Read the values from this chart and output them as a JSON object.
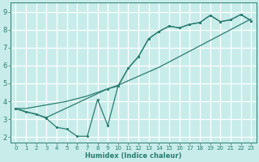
{
  "xlabel": "Humidex (Indice chaleur)",
  "bg_color": "#c8ecea",
  "grid_color": "#e8f8f8",
  "line_color": "#2a7d70",
  "xlim": [
    -0.5,
    23.5
  ],
  "ylim": [
    1.7,
    9.5
  ],
  "xticks": [
    0,
    1,
    2,
    3,
    4,
    5,
    6,
    7,
    8,
    9,
    10,
    11,
    12,
    13,
    14,
    15,
    16,
    17,
    18,
    19,
    20,
    21,
    22,
    23
  ],
  "yticks": [
    2,
    3,
    4,
    5,
    6,
    7,
    8,
    9
  ],
  "line1_x": [
    0,
    1,
    2,
    3,
    4,
    5,
    6,
    7,
    8,
    9,
    10,
    11,
    12,
    13,
    14,
    15,
    16,
    17,
    18,
    19,
    20,
    21,
    22,
    23
  ],
  "line1_y": [
    3.6,
    3.4,
    3.3,
    3.05,
    2.55,
    2.45,
    2.05,
    2.05,
    4.1,
    2.65,
    4.85,
    5.85,
    6.5,
    7.5,
    7.9,
    8.2,
    8.1,
    8.3,
    8.4,
    8.8,
    8.45,
    8.55,
    8.85,
    8.5
  ],
  "line2_x": [
    0,
    1,
    2,
    3,
    4,
    5,
    6,
    7,
    8,
    9,
    10,
    11,
    12,
    13,
    14,
    15,
    16,
    17,
    18,
    19,
    20,
    21,
    22,
    23
  ],
  "line2_y": [
    3.6,
    3.6,
    3.7,
    3.8,
    3.9,
    4.0,
    4.15,
    4.3,
    4.5,
    4.7,
    4.9,
    5.15,
    5.4,
    5.65,
    5.9,
    6.2,
    6.5,
    6.8,
    7.1,
    7.4,
    7.7,
    8.0,
    8.3,
    8.6
  ],
  "line3_x": [
    0,
    3,
    9,
    10,
    11,
    12,
    13,
    14,
    15,
    16,
    17,
    18,
    19,
    20,
    21,
    22,
    23
  ],
  "line3_y": [
    3.6,
    3.1,
    4.7,
    4.85,
    5.85,
    6.5,
    7.5,
    7.9,
    8.2,
    8.1,
    8.3,
    8.4,
    8.8,
    8.45,
    8.55,
    8.85,
    8.5
  ]
}
